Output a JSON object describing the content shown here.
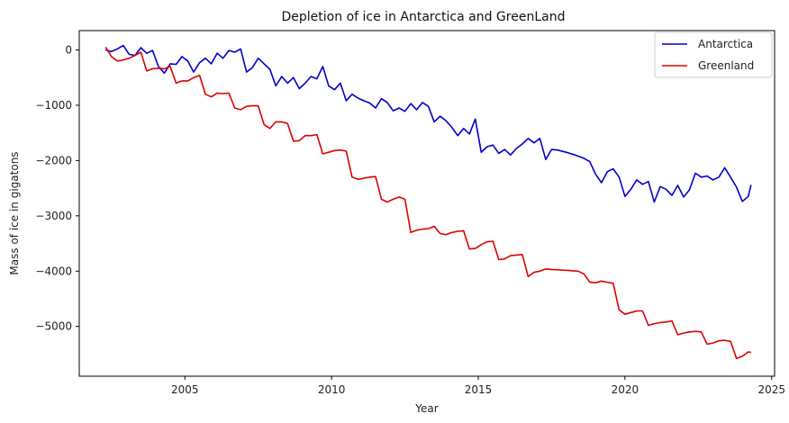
{
  "chart_data": {
    "type": "line",
    "title": "Depletion of ice in Antarctica and GreenLand",
    "xlabel": "Year",
    "ylabel": "Mass of ice in gigatons",
    "xlim": [
      2001.4,
      2025.1
    ],
    "ylim": [
      -5900,
      350
    ],
    "xticks": [
      2005,
      2010,
      2015,
      2020,
      2025
    ],
    "xtick_labels": [
      "2005",
      "2010",
      "2015",
      "2020",
      "2025"
    ],
    "yticks": [
      0,
      -1000,
      -2000,
      -3000,
      -4000,
      -5000
    ],
    "ytick_labels": [
      "0",
      "−1000",
      "−2000",
      "−3000",
      "−4000",
      "−5000"
    ],
    "grid": false,
    "legend": {
      "position": "top-right",
      "entries": [
        "Antarctica",
        "Greenland"
      ]
    },
    "series": [
      {
        "name": "Antarctica",
        "color": "#0000cc",
        "points": [
          [
            2002.3,
            0
          ],
          [
            2002.5,
            -30
          ],
          [
            2002.7,
            20
          ],
          [
            2002.9,
            80
          ],
          [
            2003.1,
            -80
          ],
          [
            2003.3,
            -100
          ],
          [
            2003.5,
            40
          ],
          [
            2003.7,
            -60
          ],
          [
            2003.9,
            -10
          ],
          [
            2004.1,
            -300
          ],
          [
            2004.3,
            -420
          ],
          [
            2004.5,
            -250
          ],
          [
            2004.7,
            -260
          ],
          [
            2004.9,
            -120
          ],
          [
            2005.1,
            -200
          ],
          [
            2005.3,
            -400
          ],
          [
            2005.5,
            -230
          ],
          [
            2005.7,
            -150
          ],
          [
            2005.9,
            -250
          ],
          [
            2006.1,
            -60
          ],
          [
            2006.3,
            -150
          ],
          [
            2006.5,
            -10
          ],
          [
            2006.7,
            -40
          ],
          [
            2006.9,
            20
          ],
          [
            2007.1,
            -400
          ],
          [
            2007.3,
            -320
          ],
          [
            2007.5,
            -150
          ],
          [
            2007.7,
            -250
          ],
          [
            2007.9,
            -350
          ],
          [
            2008.1,
            -650
          ],
          [
            2008.3,
            -480
          ],
          [
            2008.5,
            -600
          ],
          [
            2008.7,
            -500
          ],
          [
            2008.9,
            -700
          ],
          [
            2009.1,
            -600
          ],
          [
            2009.3,
            -480
          ],
          [
            2009.5,
            -520
          ],
          [
            2009.7,
            -300
          ],
          [
            2009.9,
            -650
          ],
          [
            2010.1,
            -720
          ],
          [
            2010.3,
            -600
          ],
          [
            2010.5,
            -920
          ],
          [
            2010.7,
            -800
          ],
          [
            2010.9,
            -870
          ],
          [
            2011.1,
            -920
          ],
          [
            2011.3,
            -960
          ],
          [
            2011.5,
            -1050
          ],
          [
            2011.7,
            -880
          ],
          [
            2011.9,
            -950
          ],
          [
            2012.1,
            -1100
          ],
          [
            2012.3,
            -1050
          ],
          [
            2012.5,
            -1110
          ],
          [
            2012.7,
            -970
          ],
          [
            2012.9,
            -1080
          ],
          [
            2013.1,
            -950
          ],
          [
            2013.3,
            -1020
          ],
          [
            2013.5,
            -1300
          ],
          [
            2013.7,
            -1200
          ],
          [
            2013.9,
            -1280
          ],
          [
            2014.1,
            -1400
          ],
          [
            2014.3,
            -1550
          ],
          [
            2014.5,
            -1420
          ],
          [
            2014.7,
            -1520
          ],
          [
            2014.9,
            -1250
          ],
          [
            2015.1,
            -1850
          ],
          [
            2015.3,
            -1750
          ],
          [
            2015.5,
            -1720
          ],
          [
            2015.7,
            -1870
          ],
          [
            2015.9,
            -1800
          ],
          [
            2016.1,
            -1900
          ],
          [
            2016.3,
            -1780
          ],
          [
            2016.5,
            -1700
          ],
          [
            2016.7,
            -1600
          ],
          [
            2016.9,
            -1680
          ],
          [
            2017.1,
            -1600
          ],
          [
            2017.3,
            -1980
          ],
          [
            2017.5,
            -1800
          ],
          [
            2017.7,
            -1810
          ],
          [
            2018.0,
            -1850
          ],
          [
            2018.3,
            -1900
          ],
          [
            2018.6,
            -1960
          ],
          [
            2018.8,
            -2020
          ],
          [
            2019.0,
            -2250
          ],
          [
            2019.2,
            -2400
          ],
          [
            2019.4,
            -2200
          ],
          [
            2019.6,
            -2150
          ],
          [
            2019.8,
            -2300
          ],
          [
            2020.0,
            -2650
          ],
          [
            2020.2,
            -2520
          ],
          [
            2020.4,
            -2350
          ],
          [
            2020.6,
            -2430
          ],
          [
            2020.8,
            -2380
          ],
          [
            2021.0,
            -2750
          ],
          [
            2021.2,
            -2470
          ],
          [
            2021.4,
            -2520
          ],
          [
            2021.6,
            -2630
          ],
          [
            2021.8,
            -2450
          ],
          [
            2022.0,
            -2660
          ],
          [
            2022.2,
            -2530
          ],
          [
            2022.4,
            -2230
          ],
          [
            2022.6,
            -2300
          ],
          [
            2022.8,
            -2280
          ],
          [
            2023.0,
            -2350
          ],
          [
            2023.2,
            -2300
          ],
          [
            2023.4,
            -2130
          ],
          [
            2023.6,
            -2300
          ],
          [
            2023.8,
            -2480
          ],
          [
            2024.0,
            -2740
          ],
          [
            2024.2,
            -2650
          ],
          [
            2024.3,
            -2440
          ]
        ]
      },
      {
        "name": "Greenland",
        "color": "#dd0000",
        "points": [
          [
            2002.3,
            50
          ],
          [
            2002.5,
            -120
          ],
          [
            2002.7,
            -200
          ],
          [
            2002.9,
            -180
          ],
          [
            2003.1,
            -150
          ],
          [
            2003.3,
            -100
          ],
          [
            2003.5,
            -40
          ],
          [
            2003.7,
            -380
          ],
          [
            2003.9,
            -340
          ],
          [
            2004.1,
            -330
          ],
          [
            2004.3,
            -340
          ],
          [
            2004.5,
            -300
          ],
          [
            2004.7,
            -600
          ],
          [
            2004.9,
            -560
          ],
          [
            2005.1,
            -560
          ],
          [
            2005.3,
            -500
          ],
          [
            2005.5,
            -460
          ],
          [
            2005.7,
            -800
          ],
          [
            2005.9,
            -850
          ],
          [
            2006.1,
            -780
          ],
          [
            2006.3,
            -790
          ],
          [
            2006.5,
            -780
          ],
          [
            2006.7,
            -1050
          ],
          [
            2006.9,
            -1080
          ],
          [
            2007.1,
            -1020
          ],
          [
            2007.3,
            -1010
          ],
          [
            2007.5,
            -1010
          ],
          [
            2007.7,
            -1350
          ],
          [
            2007.9,
            -1420
          ],
          [
            2008.1,
            -1300
          ],
          [
            2008.3,
            -1300
          ],
          [
            2008.5,
            -1330
          ],
          [
            2008.7,
            -1650
          ],
          [
            2008.9,
            -1640
          ],
          [
            2009.1,
            -1550
          ],
          [
            2009.3,
            -1550
          ],
          [
            2009.5,
            -1530
          ],
          [
            2009.7,
            -1880
          ],
          [
            2009.9,
            -1850
          ],
          [
            2010.1,
            -1820
          ],
          [
            2010.3,
            -1810
          ],
          [
            2010.5,
            -1830
          ],
          [
            2010.7,
            -2300
          ],
          [
            2010.9,
            -2340
          ],
          [
            2011.1,
            -2320
          ],
          [
            2011.3,
            -2300
          ],
          [
            2011.5,
            -2290
          ],
          [
            2011.7,
            -2700
          ],
          [
            2011.9,
            -2750
          ],
          [
            2012.1,
            -2700
          ],
          [
            2012.3,
            -2660
          ],
          [
            2012.5,
            -2700
          ],
          [
            2012.7,
            -3300
          ],
          [
            2012.9,
            -3260
          ],
          [
            2013.1,
            -3240
          ],
          [
            2013.3,
            -3230
          ],
          [
            2013.5,
            -3190
          ],
          [
            2013.7,
            -3320
          ],
          [
            2013.9,
            -3340
          ],
          [
            2014.1,
            -3300
          ],
          [
            2014.3,
            -3280
          ],
          [
            2014.5,
            -3270
          ],
          [
            2014.7,
            -3600
          ],
          [
            2014.9,
            -3590
          ],
          [
            2015.1,
            -3520
          ],
          [
            2015.3,
            -3470
          ],
          [
            2015.5,
            -3460
          ],
          [
            2015.7,
            -3790
          ],
          [
            2015.9,
            -3780
          ],
          [
            2016.1,
            -3720
          ],
          [
            2016.3,
            -3710
          ],
          [
            2016.5,
            -3700
          ],
          [
            2016.7,
            -4100
          ],
          [
            2016.9,
            -4020
          ],
          [
            2017.1,
            -4000
          ],
          [
            2017.3,
            -3960
          ],
          [
            2017.5,
            -3970
          ],
          [
            2017.8,
            -3980
          ],
          [
            2018.1,
            -3990
          ],
          [
            2018.4,
            -4000
          ],
          [
            2018.6,
            -4050
          ],
          [
            2018.8,
            -4200
          ],
          [
            2019.0,
            -4210
          ],
          [
            2019.2,
            -4180
          ],
          [
            2019.4,
            -4200
          ],
          [
            2019.6,
            -4220
          ],
          [
            2019.8,
            -4700
          ],
          [
            2020.0,
            -4780
          ],
          [
            2020.2,
            -4750
          ],
          [
            2020.4,
            -4720
          ],
          [
            2020.6,
            -4720
          ],
          [
            2020.8,
            -4980
          ],
          [
            2021.0,
            -4950
          ],
          [
            2021.2,
            -4930
          ],
          [
            2021.4,
            -4920
          ],
          [
            2021.6,
            -4900
          ],
          [
            2021.8,
            -5150
          ],
          [
            2022.0,
            -5120
          ],
          [
            2022.2,
            -5100
          ],
          [
            2022.4,
            -5090
          ],
          [
            2022.6,
            -5100
          ],
          [
            2022.8,
            -5320
          ],
          [
            2023.0,
            -5300
          ],
          [
            2023.2,
            -5260
          ],
          [
            2023.4,
            -5250
          ],
          [
            2023.6,
            -5270
          ],
          [
            2023.8,
            -5580
          ],
          [
            2024.0,
            -5540
          ],
          [
            2024.2,
            -5460
          ],
          [
            2024.3,
            -5470
          ]
        ]
      }
    ]
  }
}
